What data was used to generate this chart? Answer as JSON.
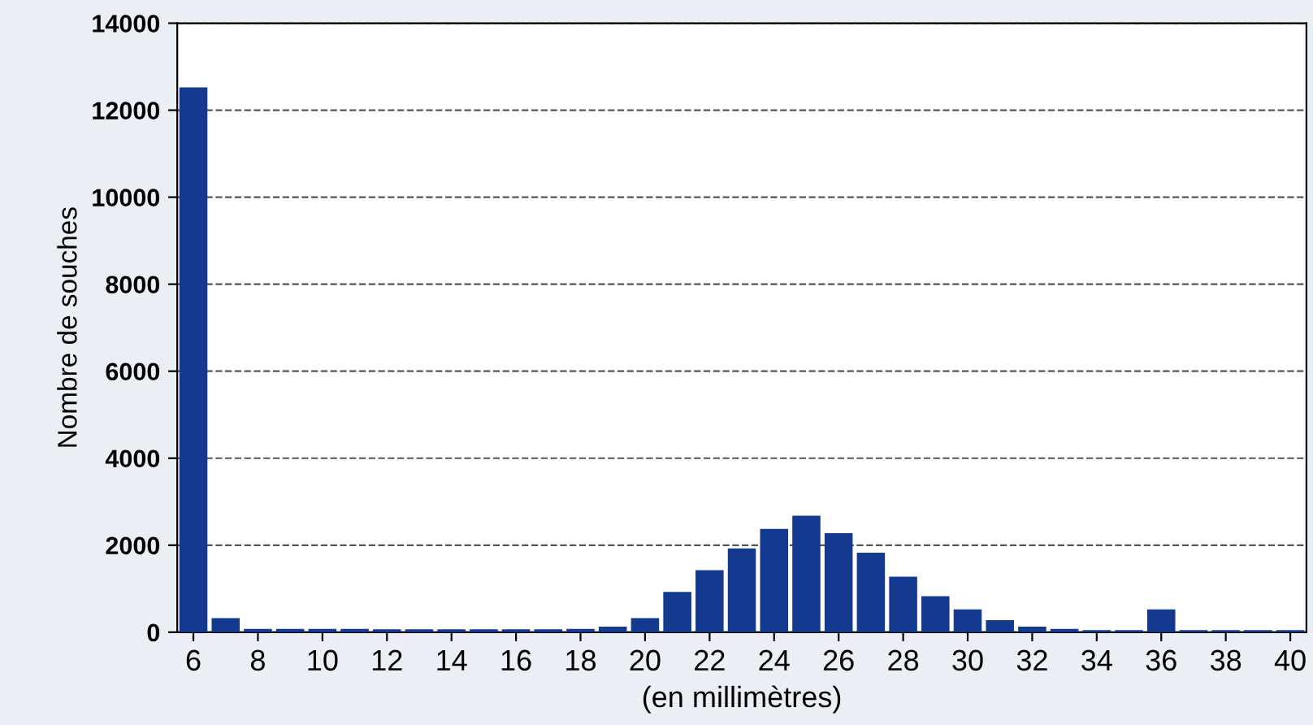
{
  "chart_data": {
    "type": "bar",
    "xlabel": "(en millimètres)",
    "ylabel": "Nombre de souches",
    "x": [
      6,
      7,
      8,
      9,
      10,
      11,
      12,
      13,
      14,
      15,
      16,
      17,
      18,
      19,
      20,
      21,
      22,
      23,
      24,
      25,
      26,
      27,
      28,
      29,
      30,
      31,
      32,
      33,
      34,
      35,
      36,
      37,
      38,
      39,
      40
    ],
    "values": [
      12500,
      300,
      50,
      50,
      50,
      50,
      40,
      40,
      40,
      40,
      40,
      40,
      50,
      100,
      300,
      900,
      1400,
      1900,
      2350,
      2650,
      2250,
      1800,
      1250,
      800,
      500,
      250,
      100,
      50,
      20,
      20,
      500,
      20,
      20,
      20,
      20
    ],
    "color": "#143a8f",
    "xlim": [
      5.5,
      40.5
    ],
    "xticks": [
      6,
      8,
      10,
      12,
      14,
      16,
      18,
      20,
      22,
      24,
      26,
      28,
      30,
      32,
      34,
      36,
      38,
      40
    ],
    "ylim": [
      0,
      14000
    ],
    "yticks": [
      0,
      2000,
      4000,
      6000,
      8000,
      10000,
      12000,
      14000
    ],
    "grid": "y",
    "line_style": "dashed"
  }
}
